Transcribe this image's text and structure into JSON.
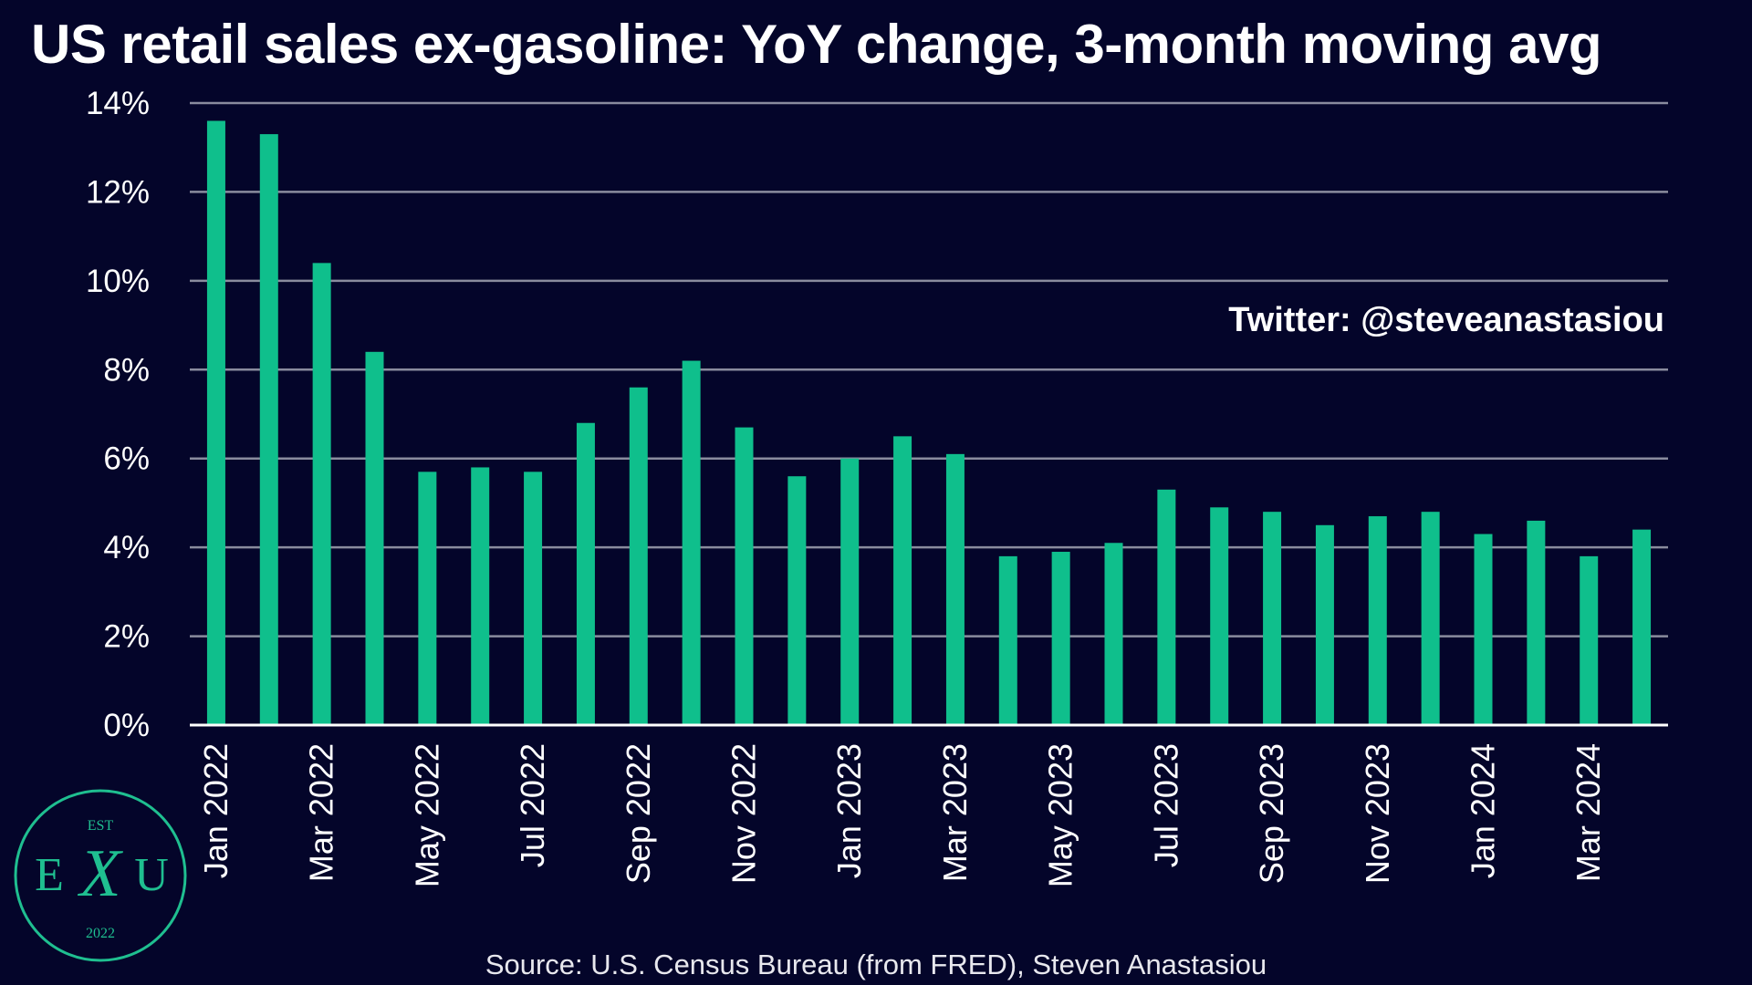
{
  "title": "US retail sales ex-gasoline: YoY change, 3-month moving avg",
  "watermark": "Twitter: @steveanastasiou",
  "source": "Source: U.S. Census Bureau (from FRED), Steven Anastasiou",
  "logo": {
    "top": "EST",
    "left": "E",
    "center": "X",
    "right": "U",
    "bottom": "2022"
  },
  "colors": {
    "background": "#04052a",
    "bar": "#0fbf8c",
    "grid": "#8a8c9e",
    "logo": "#1fbf90"
  },
  "chart_data": {
    "type": "bar",
    "title": "US retail sales ex-gasoline: YoY change, 3-month moving avg",
    "categories": [
      "Jan 2022",
      "Feb 2022",
      "Mar 2022",
      "Apr 2022",
      "May 2022",
      "Jun 2022",
      "Jul 2022",
      "Aug 2022",
      "Sep 2022",
      "Oct 2022",
      "Nov 2022",
      "Dec 2022",
      "Jan 2023",
      "Feb 2023",
      "Mar 2023",
      "Apr 2023",
      "May 2023",
      "Jun 2023",
      "Jul 2023",
      "Aug 2023",
      "Sep 2023",
      "Oct 2023",
      "Nov 2023",
      "Dec 2023",
      "Jan 2024",
      "Feb 2024",
      "Mar 2024",
      "Apr 2024"
    ],
    "tick_labels": [
      "Jan 2022",
      "",
      "Mar 2022",
      "",
      "May 2022",
      "",
      "Jul 2022",
      "",
      "Sep 2022",
      "",
      "Nov 2022",
      "",
      "Jan 2023",
      "",
      "Mar 2023",
      "",
      "May 2023",
      "",
      "Jul 2023",
      "",
      "Sep 2023",
      "",
      "Nov 2023",
      "",
      "Jan 2024",
      "",
      "Mar 2024",
      ""
    ],
    "values": [
      13.6,
      13.3,
      10.4,
      8.4,
      5.7,
      5.8,
      5.7,
      6.8,
      7.6,
      8.2,
      6.7,
      5.6,
      6.0,
      6.5,
      6.1,
      3.8,
      3.9,
      4.1,
      5.3,
      4.9,
      4.8,
      4.5,
      4.7,
      4.8,
      4.3,
      4.6,
      3.8,
      4.4
    ],
    "ylim": [
      0,
      14
    ],
    "yticks": [
      0,
      2,
      4,
      6,
      8,
      10,
      12,
      14
    ],
    "ytick_suffix": "%",
    "grid": true,
    "xlabel": "",
    "ylabel": ""
  }
}
